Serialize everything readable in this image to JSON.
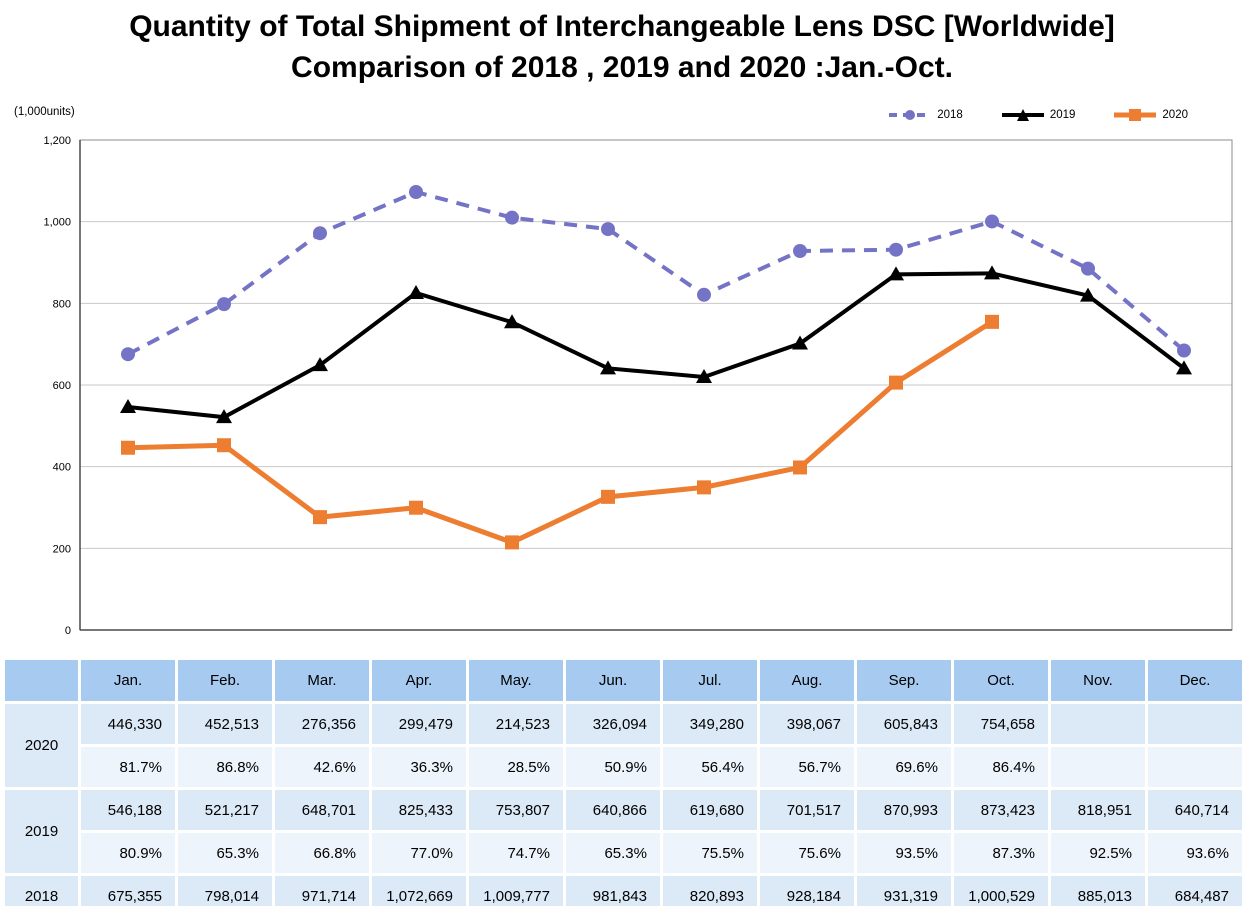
{
  "title": {
    "line1": "Quantity of Total Shipment of Interchangeable Lens DSC 【Worldwide】",
    "line2": "Comparison of 2018 , 2019 and 2020 :Jan.-Oct."
  },
  "colors": {
    "series_2018": "#7473C5",
    "series_2019": "#000000",
    "series_2020": "#ED7D31",
    "table_header": "#A6CAF0",
    "table_value_row": "#DCE9F7",
    "table_percent_row": "#EEF4FB",
    "gridline": "#C9C9C9",
    "plot_border": "#8C8C8C",
    "axis": "#4A4A4A"
  },
  "chart": {
    "units_label": "(1,000units)"
  },
  "chart_data": {
    "type": "line",
    "title": "Quantity of Total Shipment of Interchangeable Lens DSC 【Worldwide】 Comparison of 2018 , 2019 and 2020 :Jan.-Oct.",
    "categories": [
      "Jan.",
      "Feb.",
      "Mar.",
      "Apr.",
      "May.",
      "Jun.",
      "Jul.",
      "Aug.",
      "Sep.",
      "Oct.",
      "Nov.",
      "Dec."
    ],
    "ylabel": "(1,000units)",
    "ylim": [
      0,
      1200
    ],
    "ytick_step": 200,
    "ytick_labels": [
      "0",
      "200",
      "400",
      "600",
      "800",
      "1,000",
      "1,200"
    ],
    "grid": true,
    "legend_position": "top-right",
    "value_unit": "units",
    "series": [
      {
        "name": "2018",
        "color": "#7473C5",
        "style": "dashed",
        "marker": "circle",
        "values": [
          675355,
          798014,
          971714,
          1072669,
          1009777,
          981843,
          820893,
          928184,
          931319,
          1000529,
          885013,
          684487
        ]
      },
      {
        "name": "2019",
        "color": "#000000",
        "style": "solid",
        "marker": "triangle",
        "values": [
          546188,
          521217,
          648701,
          825433,
          753807,
          640866,
          619680,
          701517,
          870993,
          873423,
          818951,
          640714
        ]
      },
      {
        "name": "2020",
        "color": "#ED7D31",
        "style": "solid",
        "marker": "square",
        "values": [
          446330,
          452513,
          276356,
          299479,
          214523,
          326094,
          349280,
          398067,
          605843,
          754658
        ]
      }
    ]
  },
  "table": {
    "corner_label": "",
    "columns": [
      "Jan.",
      "Feb.",
      "Mar.",
      "Apr.",
      "May.",
      "Jun.",
      "Jul.",
      "Aug.",
      "Sep.",
      "Oct.",
      "Nov.",
      "Dec."
    ],
    "groups": [
      {
        "year": "2020",
        "values": [
          "446,330",
          "452,513",
          "276,356",
          "299,479",
          "214,523",
          "326,094",
          "349,280",
          "398,067",
          "605,843",
          "754,658",
          "",
          ""
        ],
        "percent": [
          "81.7%",
          "86.8%",
          "42.6%",
          "36.3%",
          "28.5%",
          "50.9%",
          "56.4%",
          "56.7%",
          "69.6%",
          "86.4%",
          "",
          ""
        ]
      },
      {
        "year": "2019",
        "values": [
          "546,188",
          "521,217",
          "648,701",
          "825,433",
          "753,807",
          "640,866",
          "619,680",
          "701,517",
          "870,993",
          "873,423",
          "818,951",
          "640,714"
        ],
        "percent": [
          "80.9%",
          "65.3%",
          "66.8%",
          "77.0%",
          "74.7%",
          "65.3%",
          "75.5%",
          "75.6%",
          "93.5%",
          "87.3%",
          "92.5%",
          "93.6%"
        ]
      },
      {
        "year": "2018",
        "values": [
          "675,355",
          "798,014",
          "971,714",
          "1,072,669",
          "1,009,777",
          "981,843",
          "820,893",
          "928,184",
          "931,319",
          "1,000,529",
          "885,013",
          "684,487"
        ],
        "percent": null
      }
    ]
  }
}
